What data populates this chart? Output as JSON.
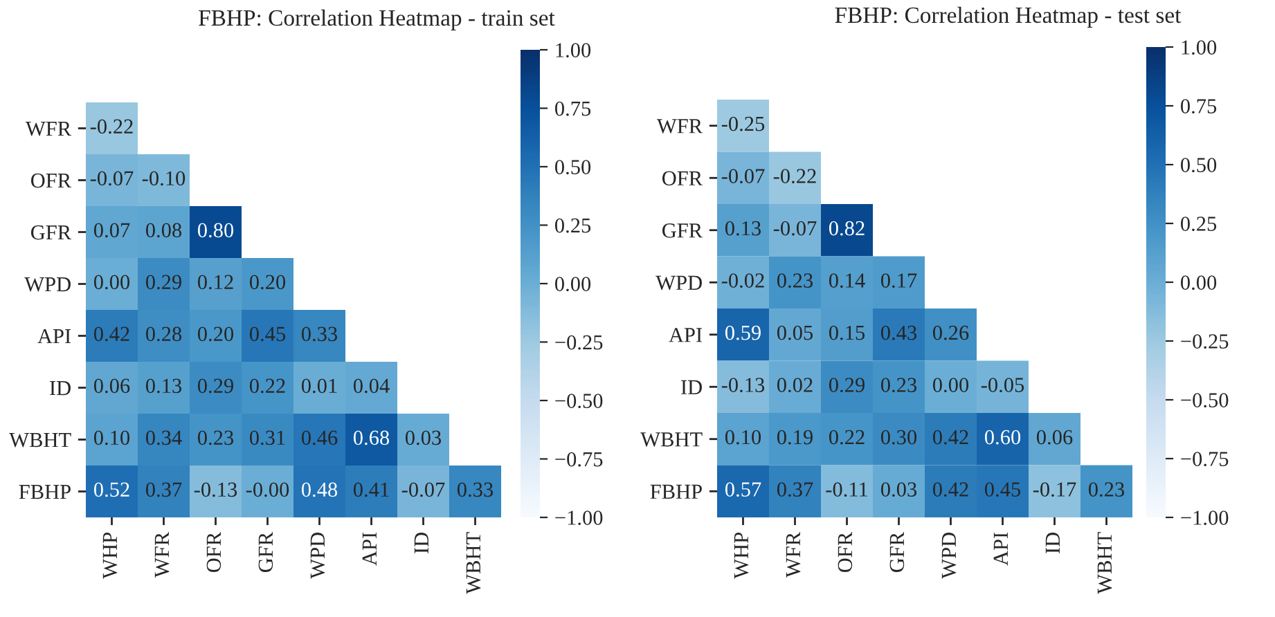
{
  "chart_data": [
    {
      "type": "heatmap",
      "title": "FBHP: Correlation Heatmap - train set",
      "categories": [
        "WHP",
        "WFR",
        "OFR",
        "GFR",
        "WPD",
        "API",
        "ID",
        "WBHT"
      ],
      "y_categories": [
        "WFR",
        "OFR",
        "GFR",
        "WPD",
        "API",
        "ID",
        "WBHT",
        "FBHP"
      ],
      "cells": [
        [
          -0.22,
          null,
          null,
          null,
          null,
          null,
          null,
          null
        ],
        [
          -0.07,
          -0.1,
          null,
          null,
          null,
          null,
          null,
          null
        ],
        [
          0.07,
          0.08,
          0.8,
          null,
          null,
          null,
          null,
          null
        ],
        [
          0.0,
          0.29,
          0.12,
          0.2,
          null,
          null,
          null,
          null
        ],
        [
          0.42,
          0.28,
          0.2,
          0.45,
          0.33,
          null,
          null,
          null
        ],
        [
          0.06,
          0.13,
          0.29,
          0.22,
          0.01,
          0.04,
          null,
          null
        ],
        [
          0.1,
          0.34,
          0.23,
          0.31,
          0.46,
          0.68,
          0.03,
          null
        ],
        [
          0.52,
          0.37,
          -0.13,
          0.0,
          0.48,
          0.41,
          -0.07,
          0.33
        ]
      ],
      "cell_labels": [
        [
          "-0.22",
          null,
          null,
          null,
          null,
          null,
          null,
          null
        ],
        [
          "-0.07",
          "-0.10",
          null,
          null,
          null,
          null,
          null,
          null
        ],
        [
          "0.07",
          "0.08",
          "0.80",
          null,
          null,
          null,
          null,
          null
        ],
        [
          "0.00",
          "0.29",
          "0.12",
          "0.20",
          null,
          null,
          null,
          null
        ],
        [
          "0.42",
          "0.28",
          "0.20",
          "0.45",
          "0.33",
          null,
          null,
          null
        ],
        [
          "0.06",
          "0.13",
          "0.29",
          "0.22",
          "0.01",
          "0.04",
          null,
          null
        ],
        [
          "0.10",
          "0.34",
          "0.23",
          "0.31",
          "0.46",
          "0.68",
          "0.03",
          null
        ],
        [
          "0.52",
          "0.37",
          "-0.13",
          "-0.00",
          "0.48",
          "0.41",
          "-0.07",
          "0.33"
        ]
      ],
      "clim": [
        -1,
        1
      ],
      "cticks": [
        {
          "value": 1,
          "label": "1.00"
        },
        {
          "value": 0.75,
          "label": "0.75"
        },
        {
          "value": 0.5,
          "label": "0.50"
        },
        {
          "value": 0.25,
          "label": "0.25"
        },
        {
          "value": 0,
          "label": "0.00"
        },
        {
          "value": -0.25,
          "label": "−0.25"
        },
        {
          "value": -0.5,
          "label": "−0.50"
        },
        {
          "value": -0.75,
          "label": "−0.75"
        },
        {
          "value": -1,
          "label": "−1.00"
        }
      ]
    },
    {
      "type": "heatmap",
      "title": "FBHP: Correlation Heatmap - test set",
      "categories": [
        "WHP",
        "WFR",
        "OFR",
        "GFR",
        "WPD",
        "API",
        "ID",
        "WBHT"
      ],
      "y_categories": [
        "WFR",
        "OFR",
        "GFR",
        "WPD",
        "API",
        "ID",
        "WBHT",
        "FBHP"
      ],
      "cells": [
        [
          -0.25,
          null,
          null,
          null,
          null,
          null,
          null,
          null
        ],
        [
          -0.07,
          -0.22,
          null,
          null,
          null,
          null,
          null,
          null
        ],
        [
          0.13,
          -0.07,
          0.82,
          null,
          null,
          null,
          null,
          null
        ],
        [
          -0.02,
          0.23,
          0.14,
          0.17,
          null,
          null,
          null,
          null
        ],
        [
          0.59,
          0.05,
          0.15,
          0.43,
          0.26,
          null,
          null,
          null
        ],
        [
          -0.13,
          0.02,
          0.29,
          0.23,
          0.0,
          -0.05,
          null,
          null
        ],
        [
          0.1,
          0.19,
          0.22,
          0.3,
          0.42,
          0.6,
          0.06,
          null
        ],
        [
          0.57,
          0.37,
          -0.11,
          0.03,
          0.42,
          0.45,
          -0.17,
          0.23
        ]
      ],
      "cell_labels": [
        [
          "-0.25",
          null,
          null,
          null,
          null,
          null,
          null,
          null
        ],
        [
          "-0.07",
          "-0.22",
          null,
          null,
          null,
          null,
          null,
          null
        ],
        [
          "0.13",
          "-0.07",
          "0.82",
          null,
          null,
          null,
          null,
          null
        ],
        [
          "-0.02",
          "0.23",
          "0.14",
          "0.17",
          null,
          null,
          null,
          null
        ],
        [
          "0.59",
          "0.05",
          "0.15",
          "0.43",
          "0.26",
          null,
          null,
          null
        ],
        [
          "-0.13",
          "0.02",
          "0.29",
          "0.23",
          "0.00",
          "-0.05",
          null,
          null
        ],
        [
          "0.10",
          "0.19",
          "0.22",
          "0.30",
          "0.42",
          "0.60",
          "0.06",
          null
        ],
        [
          "0.57",
          "0.37",
          "-0.11",
          "0.03",
          "0.42",
          "0.45",
          "-0.17",
          "0.23"
        ]
      ],
      "clim": [
        -1,
        1
      ],
      "cticks": [
        {
          "value": 1,
          "label": "1.00"
        },
        {
          "value": 0.75,
          "label": "0.75"
        },
        {
          "value": 0.5,
          "label": "0.50"
        },
        {
          "value": 0.25,
          "label": "0.25"
        },
        {
          "value": 0,
          "label": "0.00"
        },
        {
          "value": -0.25,
          "label": "−0.25"
        },
        {
          "value": -0.5,
          "label": "−0.50"
        },
        {
          "value": -0.75,
          "label": "−0.75"
        },
        {
          "value": -1,
          "label": "−1.00"
        }
      ]
    }
  ]
}
